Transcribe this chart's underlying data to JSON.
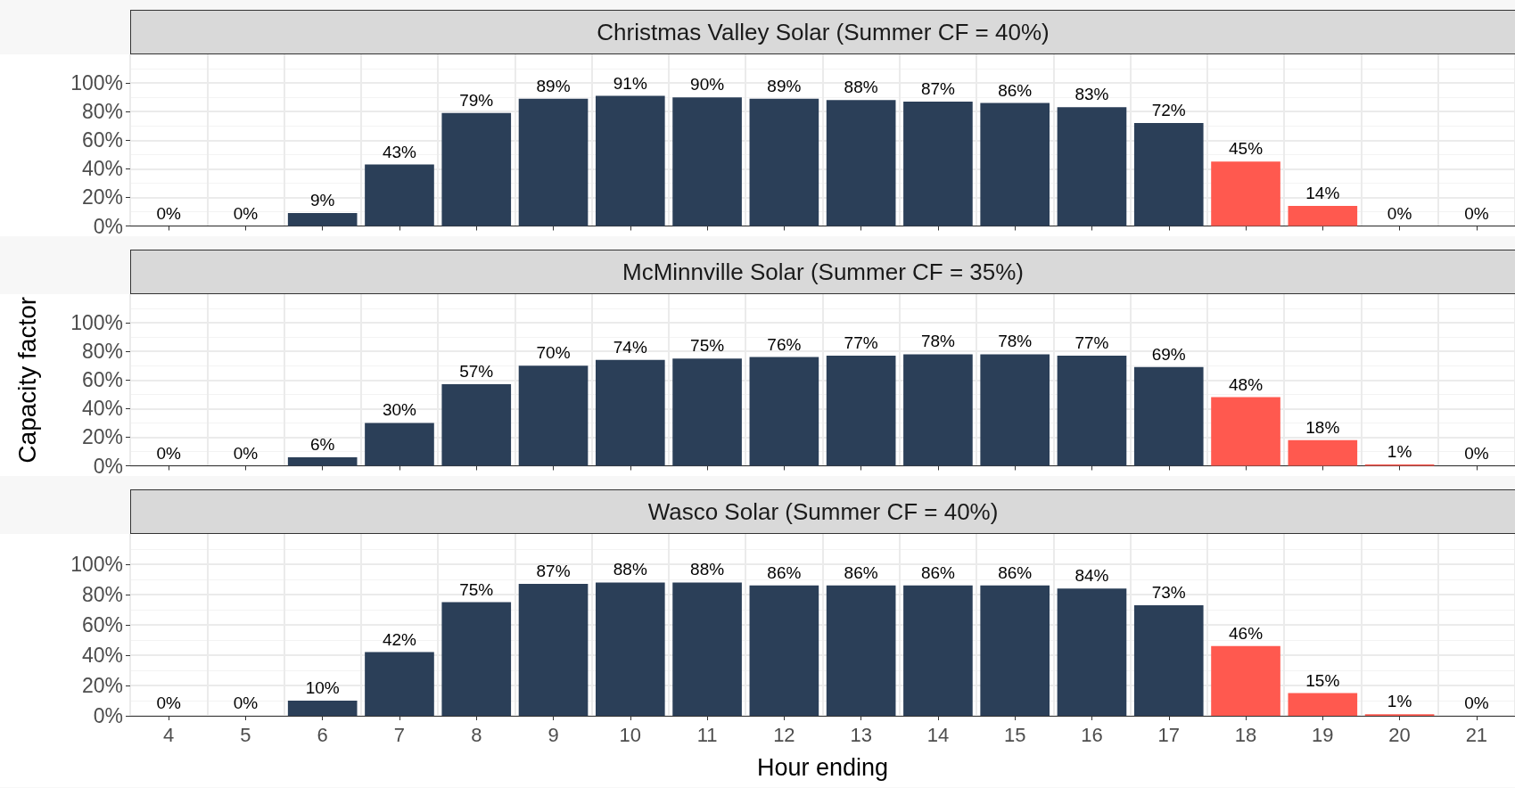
{
  "chart_data": [
    {
      "type": "bar",
      "title": "Christmas Valley Solar (Summer CF = 40%)",
      "categories": [
        "4",
        "5",
        "6",
        "7",
        "8",
        "9",
        "10",
        "11",
        "12",
        "13",
        "14",
        "15",
        "16",
        "17",
        "18",
        "19",
        "20",
        "21"
      ],
      "values": [
        0,
        0,
        9,
        43,
        79,
        89,
        91,
        90,
        89,
        88,
        87,
        86,
        83,
        72,
        45,
        14,
        0,
        0
      ],
      "value_labels": [
        "0%",
        "0%",
        "9%",
        "43%",
        "79%",
        "89%",
        "91%",
        "90%",
        "89%",
        "88%",
        "87%",
        "86%",
        "83%",
        "72%",
        "45%",
        "14%",
        "0%",
        "0%"
      ],
      "colors": [
        "#2b3f58",
        "#2b3f58",
        "#2b3f58",
        "#2b3f58",
        "#2b3f58",
        "#2b3f58",
        "#2b3f58",
        "#2b3f58",
        "#2b3f58",
        "#2b3f58",
        "#2b3f58",
        "#2b3f58",
        "#2b3f58",
        "#2b3f58",
        "#ff594f",
        "#ff594f",
        "#ff594f",
        "#ff594f"
      ],
      "ylim": [
        0,
        120
      ],
      "yticks": [
        {
          "value": 0,
          "label": "0%"
        },
        {
          "value": 20,
          "label": "20%"
        },
        {
          "value": 40,
          "label": "40%"
        },
        {
          "value": 60,
          "label": "60%"
        },
        {
          "value": 80,
          "label": "80%"
        },
        {
          "value": 100,
          "label": "100%"
        }
      ],
      "grid": true,
      "tick_labels": "y"
    },
    {
      "type": "bar",
      "title": "McMinnville Solar (Summer CF = 35%)",
      "ylabel": "Capacity factor",
      "categories": [
        "4",
        "5",
        "6",
        "7",
        "8",
        "9",
        "10",
        "11",
        "12",
        "13",
        "14",
        "15",
        "16",
        "17",
        "18",
        "19",
        "20",
        "21"
      ],
      "values": [
        0,
        0,
        6,
        30,
        57,
        70,
        74,
        75,
        76,
        77,
        78,
        78,
        77,
        69,
        48,
        18,
        1,
        0
      ],
      "value_labels": [
        "0%",
        "0%",
        "6%",
        "30%",
        "57%",
        "70%",
        "74%",
        "75%",
        "76%",
        "77%",
        "78%",
        "78%",
        "77%",
        "69%",
        "48%",
        "18%",
        "1%",
        "0%"
      ],
      "colors": [
        "#2b3f58",
        "#2b3f58",
        "#2b3f58",
        "#2b3f58",
        "#2b3f58",
        "#2b3f58",
        "#2b3f58",
        "#2b3f58",
        "#2b3f58",
        "#2b3f58",
        "#2b3f58",
        "#2b3f58",
        "#2b3f58",
        "#2b3f58",
        "#ff594f",
        "#ff594f",
        "#ff594f",
        "#ff594f"
      ],
      "ylim": [
        0,
        120
      ],
      "yticks": [
        {
          "value": 0,
          "label": "0%"
        },
        {
          "value": 20,
          "label": "20%"
        },
        {
          "value": 40,
          "label": "40%"
        },
        {
          "value": 60,
          "label": "60%"
        },
        {
          "value": 80,
          "label": "80%"
        },
        {
          "value": 100,
          "label": "100%"
        }
      ],
      "grid": true,
      "tick_labels": "y"
    },
    {
      "type": "bar",
      "title": "Wasco Solar (Summer CF = 40%)",
      "xlabel": "Hour ending",
      "categories": [
        "4",
        "5",
        "6",
        "7",
        "8",
        "9",
        "10",
        "11",
        "12",
        "13",
        "14",
        "15",
        "16",
        "17",
        "18",
        "19",
        "20",
        "21"
      ],
      "values": [
        0,
        0,
        10,
        42,
        75,
        87,
        88,
        88,
        86,
        86,
        86,
        86,
        84,
        73,
        46,
        15,
        1,
        0
      ],
      "value_labels": [
        "0%",
        "0%",
        "10%",
        "42%",
        "75%",
        "87%",
        "88%",
        "88%",
        "86%",
        "86%",
        "86%",
        "86%",
        "84%",
        "73%",
        "46%",
        "15%",
        "1%",
        "0%"
      ],
      "colors": [
        "#2b3f58",
        "#2b3f58",
        "#2b3f58",
        "#2b3f58",
        "#2b3f58",
        "#2b3f58",
        "#2b3f58",
        "#2b3f58",
        "#2b3f58",
        "#2b3f58",
        "#2b3f58",
        "#2b3f58",
        "#2b3f58",
        "#2b3f58",
        "#ff594f",
        "#ff594f",
        "#ff594f",
        "#ff594f"
      ],
      "ylim": [
        0,
        120
      ],
      "yticks": [
        {
          "value": 0,
          "label": "0%"
        },
        {
          "value": 20,
          "label": "20%"
        },
        {
          "value": 40,
          "label": "40%"
        },
        {
          "value": 60,
          "label": "60%"
        },
        {
          "value": 80,
          "label": "80%"
        },
        {
          "value": 100,
          "label": "100%"
        }
      ],
      "grid": true
    }
  ]
}
